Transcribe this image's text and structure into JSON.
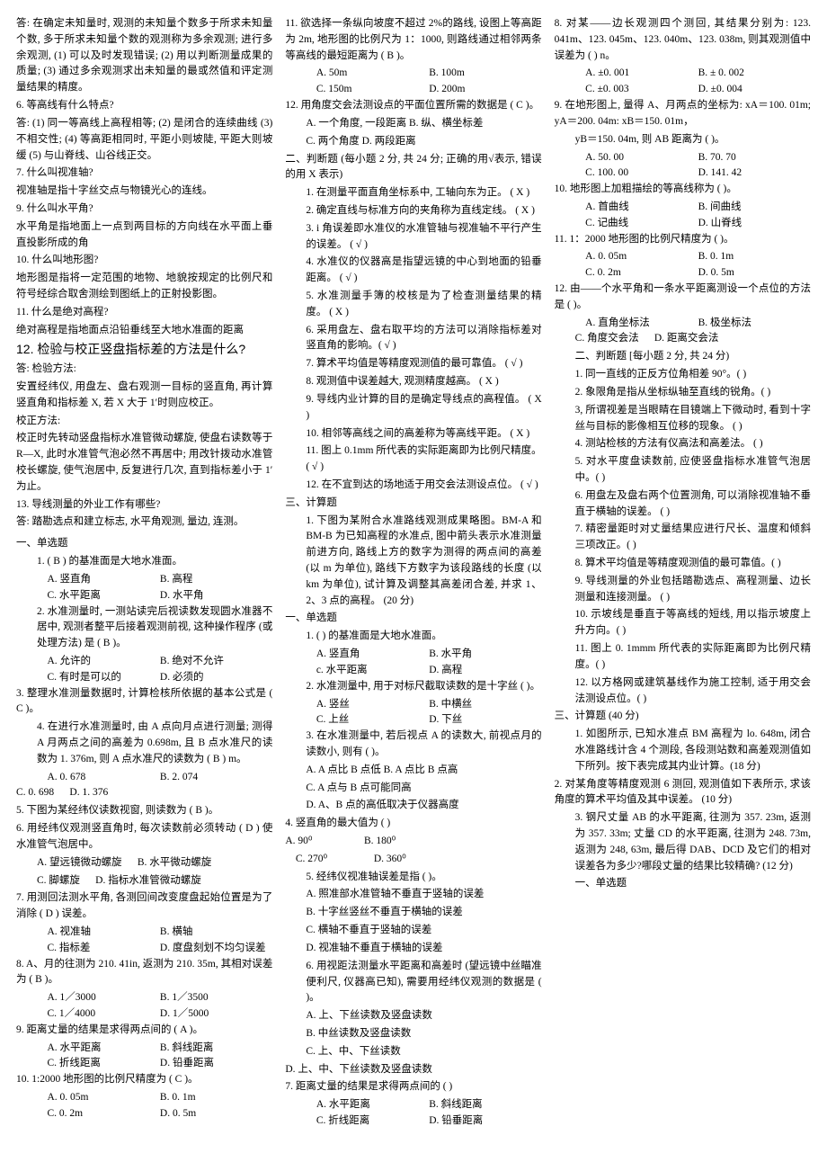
{
  "col1": {
    "p1": "答: 在确定未知量时, 观测的未知量个数多于所求未知量个数, 多于所求未知量个数的观测称为多余观测;    进行多余观测, (1) 可以及时发现错误; (2) 用以判断测量成果的质量; (3) 通过多余观测求出未知量的最或然值和评定测量结果的精度。",
    "q6": "6. 等高线有什么特点?",
    "a6": "答: (1) 同一等高线上高程相等; (2) 是闭合的连续曲线 (3) 不相交性; (4) 等高距相同时, 平距小则坡陡, 平距大则坡缓 (5) 与山脊线、山谷线正交。",
    "q7": "7. 什么叫视准轴?",
    "a7": "视准轴是指十字丝交点与物镜光心的连线。",
    "q9": "9. 什么叫水平角?",
    "a9": "水平角是指地面上一点到两目标的方向线在水平面上垂直投影所成的角",
    "q10": "10. 什么叫地形图?",
    "a10": "地形图是指将一定范围的地物、地貌按规定的比例尺和符号经综合取舍测绘到图纸上的正射投影图。",
    "q11": "11. 什么是绝对高程?",
    "a11": "绝对高程是指地面点沿铅垂线至大地水准面的距离",
    "q12": "12. 检验与校正竖盘指标差的方法是什么?",
    "a12a": "答: 检验方法:",
    "a12b": "安置经纬仪, 用盘左、盘右观测一目标的竖直角, 再计算竖直角和指标差 X, 若 X 大于 1′时则应校正。",
    "a12c": "校正方法:",
    "a12d": "校正时先转动竖盘指标水准管微动螺旋, 使盘右读数等于 R—X, 此时水准管气泡必然不再居中; 用改针拨动水准管校长螺旋, 使气泡居中, 反复进行几次, 直到指标差小于 1′为止。",
    "q13": "13. 导线测量的外业工作有哪些?",
    "a13": "答: 踏勘选点和建立标志, 水平角观测, 量边, 连测。",
    "sec1_title": "一、单选题",
    "s1_1": "1. (     B    ) 的基准面是大地水准面。",
    "s1_1a": "A. 竖直角",
    "s1_1b": "B. 高程",
    "s1_1c": "C. 水平距离",
    "s1_1d": "D. 水平角",
    "s1_2": "2. 水准测量时, 一测站读完后视读数发现圆水准器不居中, 观测者整平后接着观测前视, 这种操作程序 (或处理方法) 是 (    B    )。",
    "s1_2a": "A. 允许的",
    "s1_2b": "B. 绝对不允许",
    "s1_2c": "C. 有时是可以的",
    "s1_2d": "D. 必须的",
    "s1_3": "3. 整理水准测量数据时, 计算检核所依据的基本公式是 (      C     )。",
    "s1_4": "4. 在进行水准测量时, 由 A 点向月点进行测量; 测得 A 月两点之间的高差为 0.698m, 且 B 点水准尺的读数为 1. 376m, 则 A 点水准尺的读数为 (       B      ) m。",
    "s1_4a": "A.  0. 678",
    "s1_4b": "B.  2. 074",
    "s1_4c": "C.    0. 698",
    "s1_4d": "D.    1. 376",
    "s1_5": "5. 下图为某经纬仪读数视窗, 则读数为 (      B     )。",
    "s1_6": "6. 用经纬仪观测竖直角时, 每次读数前必须转动 (      D    ) 使水准管气泡居中。",
    "s1_6a": "A. 望远镜微动螺旋",
    "s1_6b": "B. 水平微动螺旋",
    "s1_6c": "C. 脚螺旋",
    "s1_6d": "D. 指标水准管微动螺旋",
    "s1_7": "7. 用测回法测水平角, 各测回间改变度盘起始位置是为了消除 (       D     ) 误差。",
    "s1_7a": "A. 视准轴",
    "s1_7b": "B. 横轴",
    "s1_7c": "C. 指标差",
    "s1_7d": "D. 度盘刻划不均匀误差",
    "s1_8": "8. A、月的往测为 210. 41in, 返测为 210. 35m, 其相对误差为 (       B   )。",
    "s1_8a": "A.  1／3000",
    "s1_8b": "B.  1／3500",
    "s1_8c": "C.  1／4000",
    "s1_8d": "D.  1／5000",
    "s1_9": "9. 距离丈量的结果是求得两点间的 (     A    )。",
    "s1_9a": "A. 水平距离",
    "s1_9b": "B. 斜线距离",
    "s1_9c": "C. 折线距离",
    "s1_9d": "D. 铅垂距离"
  },
  "col2": {
    "s1_10": "10. 1:2000 地形图的比例尺精度为 (     C    )。",
    "s1_10a": "A.  0. 05m",
    "s1_10b": "B.  0. 1m",
    "s1_10c": "C.  0. 2m",
    "s1_10d": "D.  0. 5m",
    "s1_11": "11. 欲选择一条纵向坡度不超过 2%的路线, 设图上等高距为 2m, 地形图的比例尺为 1：1000, 则路线通过相邻两条等高线的最短距离为 (     B    )。",
    "s1_11a": "A. 50m",
    "s1_11b": "B. 100m",
    "s1_11c": "C. 150m",
    "s1_11d": "D. 200m",
    "s1_12": "12. 用角度交会法测设点的平面位置所需的数据是 (       C    )。",
    "s1_12a": "A. 一个角度, 一段距离      B. 纵、横坐标差",
    "s1_12c": "C. 两个角度          D. 两段距离",
    "sec2_title": "二、判断题 (每小题 2 分, 共 24 分; 正确的用√表示, 错误的用 X 表示)",
    "s2_1": "1. 在测量平面直角坐标系中, 工轴向东为正。              (      X       )",
    "s2_2": "2. 确定直线与标准方向的夹角称为直线定线。              (       X      )",
    "s2_3": "3. i 角误差即水准仪的水准管轴与视准轴不平行产生的误差。    (      √     )",
    "s2_4": "4. 水准仪的仪器高是指望远镜的中心到地面的铅垂距离。      (      √    )",
    "s2_5": "5. 水准测量手簿的校核是为了检查测量结果的精度。          (        X        )",
    "s2_6": "6. 采用盘左、盘右取平均的方法可以消除指标差对竖直角的影响。(      √    )",
    "s2_7": "7. 算术平均值是等精度观测值的最可靠值。  (    √   )",
    "s2_8": "8. 观测值中误差越大, 观测精度越高。      (     X   )",
    "s2_9": "9. 导线内业计算的目的是确定导线点的高程值。            (    X    )",
    "s2_10": "10. 相邻等高线之间的高差称为等高线平距。              (      X     )",
    "s2_11": "11. 图上 0.1mm 所代表的实际距离即为比例尺精度。        (       √     )",
    "s2_12": "12. 在不宜到达的场地适于用交会法测设点位。            (       √     )",
    "sec3_title": "三、计算题",
    "s3_1": "1. 下图为某附合水准路线观测成果略图。BM-A 和 BM-B 为已知高程的水准点, 图中箭头表示水准测量前进方向, 路线上方的数字为测得的两点间的高差 (以 m 为单位), 路线下方数字为该段路线的长度 (以 km 为单位), 试计算及调整其高差闭合差, 并求 1、2、3 点的高程。            (20 分)",
    "sec1b_title": "一、单选题",
    "b1_1": "1. (       ) 的基准面是大地水准面。",
    "b1_1a": "A. 竖直角",
    "b1_1b": "B. 水平角",
    "b1_1c": "c. 水平距离",
    "b1_1d": "D. 高程",
    "b1_2": "2. 水准测量中, 用于对标尺截取读数的是十字丝 (       )。",
    "b1_2a": "A. 竖丝",
    "b1_2b": "B. 中横丝",
    "b1_2c": "C. 上丝",
    "b1_2d": "D. 下丝",
    "b1_3": "3. 在水准测量中, 若后视点 A 的读数大, 前视点月的读数小, 则有 (       )。",
    "b1_3a": "A.  A 点比 B 点低        B.  A 点比 B 点高",
    "b1_3c": "C.  A 点与 B 点可能同高",
    "b1_3d": "D.  A、B 点的高低取决于仪器高度",
    "b1_4": "4. 竖直角的最大值为 (       )",
    "b1_4a": "A.  90⁰",
    "b1_4b": "B.  180⁰",
    "b1_4c": "C.  270⁰",
    "b1_4d": "D.  360⁰",
    "b1_5": "5. 经纬仪视准轴误差是指 (       )。",
    "b1_5a": "A. 照准部水准管轴不垂直于竖轴的误差",
    "b1_5b": "B. 十字丝竖丝不垂直于横轴的误差",
    "b1_5c": "C. 横轴不垂直于竖轴的误差",
    "b1_5d": "D. 视准轴不垂直于横轴的误差",
    "b1_6": "6. 用视距法测量水平距离和高差时 (望远镜中丝瞄准便利尺, 仪器高已知), 需要用经纬仪观测的数据是 (       )。",
    "b1_6a": "A. 上、下丝读数及竖盘读数"
  },
  "col3": {
    "b1_6b": "B. 中丝读数及竖盘读数",
    "b1_6c": "C. 上、中、下丝读数",
    "b1_6d": "D. 上、中、下丝读数及竖盘读数",
    "b1_7": "7. 距离丈量的结果是求得两点间的 (       )",
    "b1_7a": "A. 水平距离",
    "b1_7b": "B. 斜线距离",
    "b1_7c": "C. 折线距离",
    "b1_7d": "D. 铅垂距离",
    "b1_8": "8. 对某——边长观测四个测回, 其结果分别为: 123. 041m、123. 045m、123. 040m、123. 038m, 则其观测值中误差为 (       ) n。",
    "b1_8a": "A.  ±0. 001",
    "b1_8b": "B.  ± 0. 002",
    "b1_8c": "C.  ±0. 003",
    "b1_8d": "D.  ±0. 004",
    "b1_9": "9. 在地形图上, 量得 A、月两点的坐标为: xA＝100. 01m; yA＝200. 04m: xB＝150. 01m，",
    "b1_9b": "yB＝150. 04m, 则 AB 距离为 (       )。",
    "b1_9a1": "A.  50. 00",
    "b1_9a2": "B.  70. 70",
    "b1_9a3": "C.  100. 00",
    "b1_9a4": "D.  141. 42",
    "b1_10": "10. 地形图上加粗描绘的等高线称为 (       )。",
    "b1_10a": "A. 首曲线",
    "b1_10b": "B. 间曲线",
    "b1_10c": "C. 记曲线",
    "b1_10d": "D. 山脊线",
    "b1_11": "11. 1：2000 地形图的比例尺精度为 (       )。",
    "b1_11a": "A.  0. 05m",
    "b1_11b": "B.  0. 1m",
    "b1_11c": "C.  0. 2m",
    "b1_11d": "D.  0. 5m",
    "b1_12": "12. 由——个水平角和一条水平距离测设一个点位的方法是 (       )。",
    "b1_12a": "A. 直角坐标法",
    "b1_12b": "B. 极坐标法",
    "b1_12c": "C. 角度交会法",
    "b1_12d": "D. 距离交会法",
    "sec2b_title": "二、判断题 [每小题 2 分, 共 24 分)",
    "b2_1": "1. 同一直线的正反方位角相差 90°。(       )",
    "b2_2": "2. 象限角是指从坐标纵轴至直线的锐角。(       )",
    "b2_3": "3, 所谓视差是当眼睛在目镜端上下微动时, 看到十字丝与目标的影像相互位移的现象。      (       )",
    "b2_4": "4. 测站检核的方法有仪高法和高差法。    (       )",
    "b2_5": "5. 对水平度盘读数前, 应使竖盘指标水准管气泡居中。(       )",
    "b2_6": "6. 用盘左及盘右两个位置测角, 可以消除视准轴不垂直于横轴的误差。 (       )",
    "b2_7": "7. 精密量距时对丈量结果应进行尺长、温度和倾斜三项改正。(       )",
    "b2_8": "8. 算术平均值是等精度观测值的最可靠值。(       )",
    "b2_9": "9. 导线测量的外业包括踏勘选点、高程测量、边长测量和连接测量。 (       )",
    "b2_10": "10. 示坡线是垂直于等高线的短线, 用以指示坡度上升方向。(       )",
    "b2_11": "11. 图上 0. 1mmm 所代表的实际距离即为比例尺精度。(       )",
    "b2_12": "12. 以方格网或建筑基线作为施工控制, 适于用交会法测设点位。(       )",
    "sec3b_title": "三、计算题 (40 分)",
    "b3_1": "1. 如图所示, 已知水准点 BM 高程为 lo. 648m, 闭合水准路线计含 4 个测段, 各段测站数和高差观测值如下所列。按下表完成其内业计算。(18 分)",
    "b3_2": "2. 对某角度等精度观测 6 测回, 观测值如下表所示, 求该角度的算术平均值及其中误差。          (10 分)",
    "b3_3": "3. 钢尺丈量 AB 的水平距离, 往测为 357. 23m, 返测为 357. 33m; 丈量 CD 的水平距离, 往测为 248. 73m, 返测为 248, 63m, 最后得 DAB、DCD 及它们的相对误差各为多少?哪段丈量的结果比较精确? (12 分)",
    "secA_title": "一、单选题"
  }
}
